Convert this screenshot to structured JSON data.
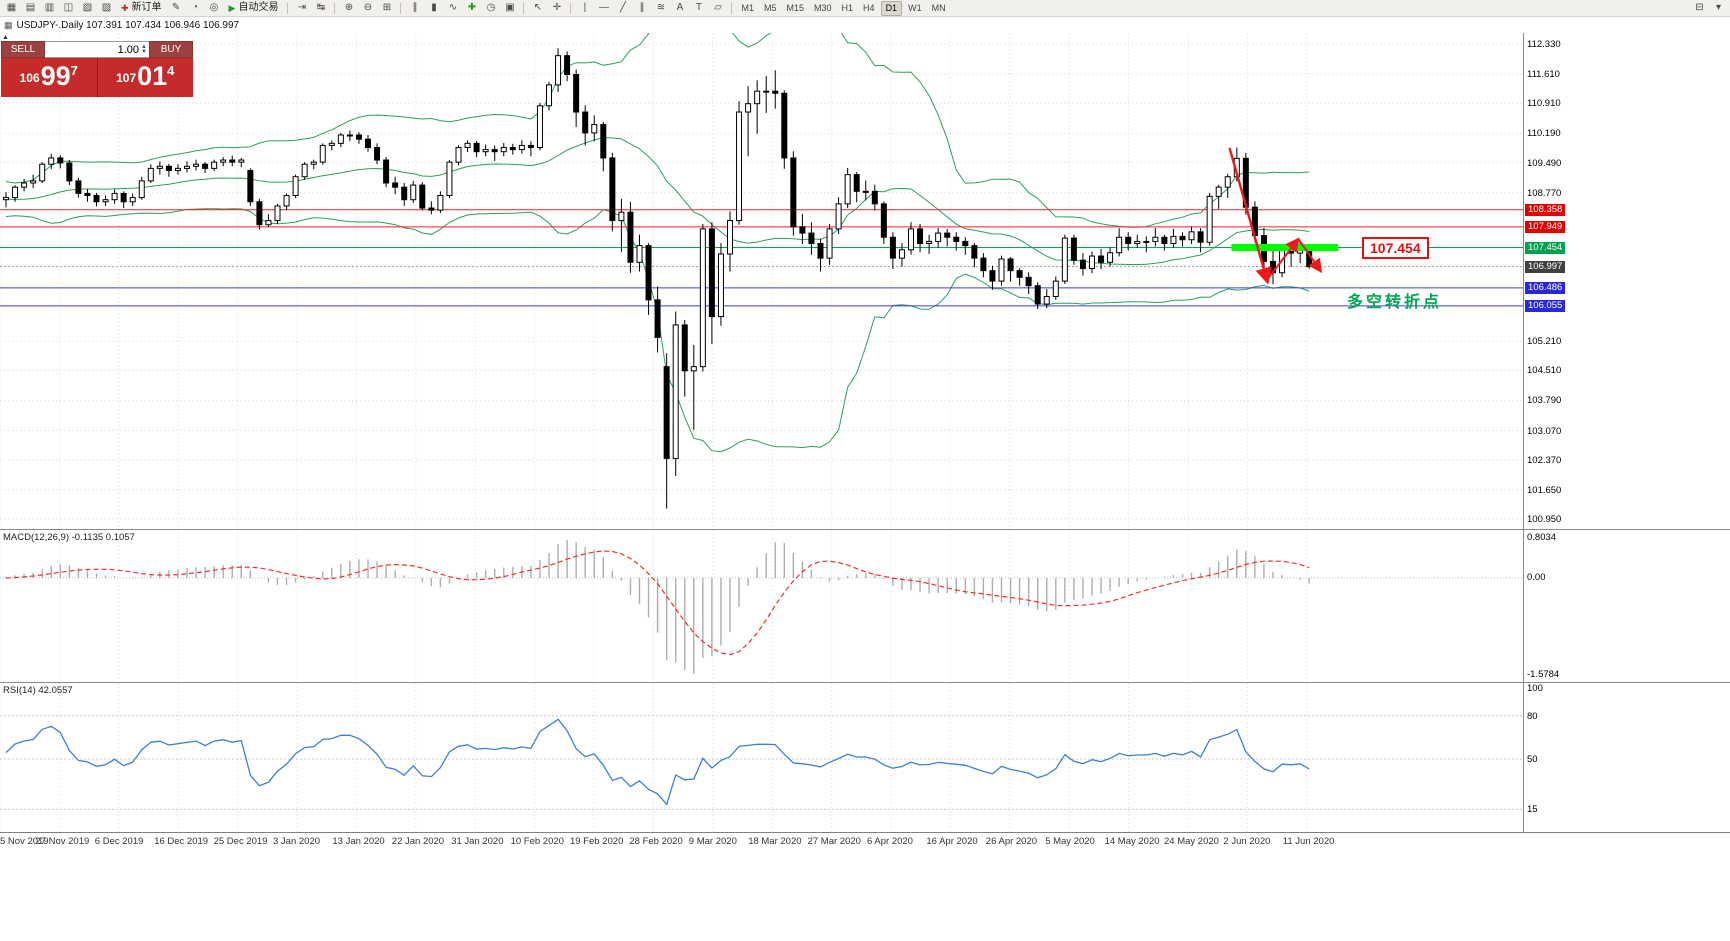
{
  "colors": {
    "grid": "#dcdcdc",
    "candle_up": "#ffffff",
    "candle_down": "#000000",
    "candle_outline": "#000000",
    "bands": "#2e9e5b",
    "hline_red": "#f02020",
    "hline_green": "#00a84f",
    "hline_blue": "#3c3ce8",
    "bid_line": "#9a9a9a",
    "support_bar": "#00ff00",
    "annotation_red": "#f01818",
    "macd_bar": "#adadad",
    "macd_signal": "#f03030",
    "rsi_line": "#3e7fd0",
    "tag_red": "#e00000",
    "tag_green": "#00a050",
    "tag_blue": "#2828d8",
    "tag_bid": "#404040"
  },
  "toolbar": {
    "items": [
      {
        "t": "icon",
        "n": "new-chart-icon",
        "g": "▦"
      },
      {
        "t": "icon",
        "n": "chart-profiles-icon",
        "g": "▤"
      },
      {
        "t": "icon",
        "n": "market-watch-icon",
        "g": "▥"
      },
      {
        "t": "icon",
        "n": "data-window-icon",
        "g": "◫"
      },
      {
        "t": "icon",
        "n": "navigator-icon",
        "g": "▧"
      },
      {
        "t": "icon",
        "n": "terminal-icon",
        "g": "▨"
      },
      {
        "t": "btn",
        "n": "new-order-button",
        "g": "✚",
        "label": "新订单"
      },
      {
        "t": "icon",
        "n": "mql-editor-icon",
        "g": "✎"
      },
      {
        "t": "icon",
        "n": "history-center-icon",
        "g": "◔"
      },
      {
        "t": "icon",
        "n": "strategy-tester-icon",
        "g": "◎"
      },
      {
        "t": "btn",
        "n": "auto-trading-button",
        "g": "▶",
        "label": "自动交易",
        "accent": "#1e9e1e"
      },
      {
        "t": "sep"
      },
      {
        "t": "icon",
        "n": "chart-shift-icon",
        "g": "⇥"
      },
      {
        "t": "icon",
        "n": "auto-scroll-icon",
        "g": "↹"
      },
      {
        "t": "sep"
      },
      {
        "t": "icon",
        "n": "zoom-in-icon",
        "g": "⊕"
      },
      {
        "t": "icon",
        "n": "zoom-out-icon",
        "g": "⊖"
      },
      {
        "t": "icon",
        "n": "tile-windows-icon",
        "g": "⊞"
      },
      {
        "t": "sep"
      },
      {
        "t": "icon",
        "n": "bar-chart-icon",
        "g": "∥"
      },
      {
        "t": "icon",
        "n": "candlestick-chart-icon",
        "g": "▮"
      },
      {
        "t": "icon",
        "n": "line-chart-icon",
        "g": "∿"
      },
      {
        "t": "icon",
        "n": "indicators-icon",
        "g": "✚",
        "accent": "#1e9e1e"
      },
      {
        "t": "icon",
        "n": "periods-icon",
        "g": "◷"
      },
      {
        "t": "icon",
        "n": "templates-icon",
        "g": "▣"
      },
      {
        "t": "sep"
      },
      {
        "t": "icon",
        "n": "cursor-icon",
        "g": "↖"
      },
      {
        "t": "icon",
        "n": "crosshair-icon",
        "g": "✛"
      },
      {
        "t": "sep"
      },
      {
        "t": "icon",
        "n": "vertical-line-icon",
        "g": "|"
      },
      {
        "t": "icon",
        "n": "horizontal-line-icon",
        "g": "―"
      },
      {
        "t": "icon",
        "n": "trendline-icon",
        "g": "╱"
      },
      {
        "t": "icon",
        "n": "channel-icon",
        "g": "∥"
      },
      {
        "t": "icon",
        "n": "fibonacci-icon",
        "g": "≋"
      },
      {
        "t": "icon",
        "n": "text-label-icon",
        "g": "A"
      },
      {
        "t": "icon",
        "n": "arrows-tool-icon",
        "g": "T"
      },
      {
        "t": "icon",
        "n": "shapes-icon",
        "g": "▱"
      },
      {
        "t": "sep"
      },
      {
        "t": "tf"
      },
      {
        "t": "spacer"
      },
      {
        "t": "icon",
        "n": "dock-windows-icon",
        "g": "⊟"
      },
      {
        "t": "icon",
        "n": "toolbar-more-icon",
        "g": "▾"
      }
    ],
    "timeframes": [
      "M1",
      "M5",
      "M15",
      "M30",
      "H1",
      "H4",
      "D1",
      "W1",
      "MN"
    ],
    "active_timeframe": "D1"
  },
  "symbol_info": {
    "icon": "▦",
    "text": "USDJPY-.Daily 107.391 107.434 106.946 106.997"
  },
  "one_click": {
    "collapse_glyph": "▲",
    "sell_label": "SELL",
    "buy_label": "BUY",
    "lot_size": "1.00",
    "lot_up_glyph": "▲",
    "lot_down_glyph": "▼",
    "sell_price_small": "106",
    "sell_price_big": "99",
    "sell_price_sup": "7",
    "buy_price_small": "107",
    "buy_price_big": "01",
    "buy_price_sup": "4"
  },
  "chart_data": {
    "type": "candlestick",
    "title": "USDJPY-.Daily",
    "open_high_low_close_current_bar": [
      107.391,
      107.434,
      106.946,
      106.997
    ],
    "ylim": [
      100.95,
      112.33
    ],
    "y_ticks": [
      112.33,
      111.61,
      110.91,
      110.19,
      109.49,
      108.77,
      105.21,
      104.51,
      103.79,
      103.07,
      102.37,
      101.65,
      100.95
    ],
    "tag_ticks": [
      {
        "value": 108.358,
        "color_key": "tag_red"
      },
      {
        "value": 107.949,
        "color_key": "tag_red"
      },
      {
        "value": 107.454,
        "color_key": "tag_green"
      },
      {
        "value": 106.997,
        "color_key": "tag_bid"
      },
      {
        "value": 106.486,
        "color_key": "tag_blue"
      },
      {
        "value": 106.055,
        "color_key": "tag_blue"
      }
    ],
    "hlines": [
      {
        "price": 108.358,
        "color_key": "hline_red"
      },
      {
        "price": 107.949,
        "color_key": "hline_red"
      },
      {
        "price": 107.454,
        "color_key": "hline_green"
      },
      {
        "price": 106.486,
        "color_key": "hline_blue"
      },
      {
        "price": 106.055,
        "color_key": "hline_blue"
      }
    ],
    "bid": 106.997,
    "indicators": {
      "bollinger": {
        "period": 20,
        "deviation": 2
      },
      "macd": {
        "fast": 12,
        "slow": 26,
        "signal": 9
      }
    },
    "x_labels": [
      "5 Nov 2019",
      "27 Nov 2019",
      "6 Dec 2019",
      "16 Dec 2019",
      "25 Dec 2019",
      "3 Jan 2020",
      "13 Jan 2020",
      "22 Jan 2020",
      "31 Jan 2020",
      "10 Feb 2020",
      "19 Feb 2020",
      "28 Feb 2020",
      "9 Mar 2020",
      "18 Mar 2020",
      "27 Mar 2020",
      "6 Apr 2020",
      "16 Apr 2020",
      "26 Apr 2020",
      "5 May 2020",
      "14 May 2020",
      "24 May 2020",
      "2 Jun 2020",
      "11 Jun 2020"
    ],
    "pre_close": [
      107.9,
      108.05,
      108.2,
      108.35,
      108.45,
      108.3,
      108.5,
      108.65,
      108.6,
      108.75,
      108.9,
      109.0,
      108.85,
      108.95,
      109.1,
      109.2,
      109.05,
      108.9,
      108.75,
      108.6,
      108.45,
      108.3,
      108.2,
      108.35,
      108.5,
      108.6,
      108.7,
      108.55,
      108.4,
      108.55,
      108.7,
      108.8,
      108.9,
      108.75,
      108.6
    ],
    "ohlc": [
      [
        108.6,
        108.78,
        108.42,
        108.65
      ],
      [
        108.65,
        108.95,
        108.55,
        108.9
      ],
      [
        108.9,
        109.1,
        108.8,
        109.0
      ],
      [
        109.0,
        109.2,
        108.88,
        109.05
      ],
      [
        109.05,
        109.5,
        109.0,
        109.45
      ],
      [
        109.45,
        109.7,
        109.33,
        109.6
      ],
      [
        109.6,
        109.67,
        109.35,
        109.48
      ],
      [
        109.48,
        109.55,
        108.95,
        109.05
      ],
      [
        109.05,
        109.12,
        108.65,
        108.75
      ],
      [
        108.75,
        108.85,
        108.55,
        108.7
      ],
      [
        108.7,
        108.76,
        108.44,
        108.55
      ],
      [
        108.55,
        108.7,
        108.45,
        108.6
      ],
      [
        108.6,
        108.85,
        108.5,
        108.75
      ],
      [
        108.75,
        108.8,
        108.4,
        108.55
      ],
      [
        108.55,
        108.75,
        108.45,
        108.65
      ],
      [
        108.65,
        109.15,
        108.6,
        109.05
      ],
      [
        109.05,
        109.45,
        109.0,
        109.35
      ],
      [
        109.35,
        109.52,
        109.2,
        109.4
      ],
      [
        109.4,
        109.46,
        109.15,
        109.3
      ],
      [
        109.3,
        109.45,
        109.2,
        109.35
      ],
      [
        109.35,
        109.52,
        109.25,
        109.4
      ],
      [
        109.4,
        109.56,
        109.3,
        109.45
      ],
      [
        109.45,
        109.5,
        109.24,
        109.35
      ],
      [
        109.35,
        109.56,
        109.28,
        109.5
      ],
      [
        109.5,
        109.62,
        109.4,
        109.55
      ],
      [
        109.55,
        109.66,
        109.4,
        109.5
      ],
      [
        109.5,
        109.6,
        109.38,
        109.55
      ],
      [
        109.3,
        109.35,
        108.45,
        108.55
      ],
      [
        108.55,
        108.62,
        107.88,
        108.0
      ],
      [
        108.0,
        108.25,
        107.94,
        108.1
      ],
      [
        108.1,
        108.5,
        108.02,
        108.45
      ],
      [
        108.45,
        108.75,
        108.35,
        108.7
      ],
      [
        108.7,
        109.2,
        108.64,
        109.15
      ],
      [
        109.15,
        109.5,
        109.08,
        109.45
      ],
      [
        109.45,
        109.56,
        109.33,
        109.5
      ],
      [
        109.5,
        109.95,
        109.44,
        109.9
      ],
      [
        109.9,
        110.02,
        109.78,
        109.95
      ],
      [
        109.95,
        110.2,
        109.86,
        110.15
      ],
      [
        110.15,
        110.26,
        110.0,
        110.15
      ],
      [
        110.15,
        110.22,
        109.94,
        110.05
      ],
      [
        110.05,
        110.15,
        109.75,
        109.85
      ],
      [
        109.85,
        109.95,
        109.45,
        109.55
      ],
      [
        109.55,
        109.62,
        108.9,
        109.0
      ],
      [
        109.0,
        109.15,
        108.73,
        108.9
      ],
      [
        108.9,
        109.0,
        108.45,
        108.6
      ],
      [
        108.6,
        109.05,
        108.52,
        108.95
      ],
      [
        108.95,
        109.02,
        108.35,
        108.4
      ],
      [
        108.4,
        108.56,
        108.25,
        108.35
      ],
      [
        108.35,
        108.8,
        108.28,
        108.7
      ],
      [
        108.7,
        109.55,
        108.64,
        109.5
      ],
      [
        109.5,
        109.9,
        109.42,
        109.85
      ],
      [
        109.85,
        110.02,
        109.74,
        109.95
      ],
      [
        109.95,
        110.0,
        109.62,
        109.75
      ],
      [
        109.75,
        109.92,
        109.64,
        109.8
      ],
      [
        109.8,
        109.9,
        109.53,
        109.75
      ],
      [
        109.75,
        109.96,
        109.64,
        109.85
      ],
      [
        109.85,
        109.94,
        109.68,
        109.8
      ],
      [
        109.8,
        110.02,
        109.7,
        109.9
      ],
      [
        109.9,
        110.0,
        109.64,
        109.85
      ],
      [
        109.85,
        110.92,
        109.78,
        110.85
      ],
      [
        110.85,
        111.42,
        110.74,
        111.35
      ],
      [
        111.35,
        112.23,
        111.18,
        112.05
      ],
      [
        112.05,
        112.15,
        111.44,
        111.6
      ],
      [
        111.6,
        111.72,
        110.34,
        110.7
      ],
      [
        110.7,
        110.86,
        109.9,
        110.2
      ],
      [
        110.2,
        110.62,
        110.0,
        110.4
      ],
      [
        110.4,
        110.46,
        109.28,
        109.6
      ],
      [
        109.6,
        109.72,
        107.84,
        108.1
      ],
      [
        108.1,
        108.62,
        107.35,
        108.3
      ],
      [
        108.3,
        108.55,
        106.85,
        107.1
      ],
      [
        107.1,
        107.76,
        106.88,
        107.5
      ],
      [
        107.5,
        107.56,
        105.84,
        106.2
      ],
      [
        106.2,
        106.52,
        104.94,
        105.3
      ],
      [
        104.6,
        104.92,
        101.2,
        102.4
      ],
      [
        102.4,
        105.92,
        101.98,
        105.6
      ],
      [
        105.6,
        105.72,
        103.88,
        104.5
      ],
      [
        104.5,
        105.12,
        103.08,
        104.6
      ],
      [
        104.6,
        108.02,
        104.48,
        107.9
      ],
      [
        107.9,
        108.06,
        105.14,
        105.8
      ],
      [
        105.8,
        107.56,
        105.58,
        107.3
      ],
      [
        107.3,
        108.32,
        106.88,
        108.1
      ],
      [
        108.1,
        110.96,
        108.0,
        110.7
      ],
      [
        110.7,
        111.32,
        109.64,
        110.9
      ],
      [
        110.9,
        111.46,
        110.18,
        111.2
      ],
      [
        111.2,
        111.56,
        110.68,
        111.2
      ],
      [
        111.2,
        111.7,
        110.78,
        111.15
      ],
      [
        111.15,
        111.22,
        109.34,
        109.6
      ],
      [
        109.6,
        109.76,
        107.74,
        107.95
      ],
      [
        107.95,
        108.26,
        107.54,
        107.8
      ],
      [
        107.8,
        108.06,
        107.28,
        107.55
      ],
      [
        107.55,
        107.66,
        106.88,
        107.2
      ],
      [
        107.2,
        108.02,
        107.04,
        107.9
      ],
      [
        107.9,
        108.66,
        107.78,
        108.5
      ],
      [
        108.5,
        109.36,
        108.4,
        109.2
      ],
      [
        109.2,
        109.26,
        108.54,
        108.8
      ],
      [
        108.8,
        109.06,
        108.58,
        108.8
      ],
      [
        108.8,
        108.96,
        108.34,
        108.5
      ],
      [
        108.5,
        108.56,
        107.54,
        107.7
      ],
      [
        107.7,
        107.82,
        106.94,
        107.2
      ],
      [
        107.2,
        107.56,
        107.0,
        107.4
      ],
      [
        107.4,
        108.06,
        107.28,
        107.9
      ],
      [
        107.9,
        108.02,
        107.34,
        107.55
      ],
      [
        107.55,
        107.76,
        107.3,
        107.6
      ],
      [
        107.6,
        107.92,
        107.44,
        107.8
      ],
      [
        107.8,
        107.9,
        107.48,
        107.7
      ],
      [
        107.7,
        107.82,
        107.38,
        107.6
      ],
      [
        107.6,
        107.7,
        107.28,
        107.5
      ],
      [
        107.5,
        107.56,
        106.98,
        107.2
      ],
      [
        107.2,
        107.32,
        106.74,
        106.9
      ],
      [
        106.9,
        107.02,
        106.44,
        106.65
      ],
      [
        106.65,
        107.26,
        106.54,
        107.18
      ],
      [
        107.18,
        107.22,
        106.64,
        106.9
      ],
      [
        106.9,
        106.96,
        106.54,
        106.74
      ],
      [
        106.74,
        106.86,
        106.34,
        106.54
      ],
      [
        106.54,
        106.62,
        105.98,
        106.1
      ],
      [
        106.1,
        106.46,
        106.0,
        106.28
      ],
      [
        106.28,
        106.76,
        106.2,
        106.65
      ],
      [
        106.65,
        107.76,
        106.58,
        107.68
      ],
      [
        107.68,
        107.76,
        107.04,
        107.15
      ],
      [
        107.15,
        107.32,
        106.78,
        106.95
      ],
      [
        106.95,
        107.36,
        106.84,
        107.25
      ],
      [
        107.25,
        107.42,
        106.94,
        107.1
      ],
      [
        107.1,
        107.46,
        107.0,
        107.33
      ],
      [
        107.33,
        107.92,
        107.24,
        107.7
      ],
      [
        107.7,
        107.82,
        107.38,
        107.55
      ],
      [
        107.55,
        107.76,
        107.44,
        107.6
      ],
      [
        107.6,
        107.72,
        107.34,
        107.6
      ],
      [
        107.6,
        107.92,
        107.48,
        107.7
      ],
      [
        107.7,
        107.76,
        107.38,
        107.55
      ],
      [
        107.55,
        107.9,
        107.44,
        107.72
      ],
      [
        107.72,
        107.82,
        107.48,
        107.64
      ],
      [
        107.64,
        107.96,
        107.54,
        107.83
      ],
      [
        107.83,
        107.92,
        107.34,
        107.58
      ],
      [
        107.58,
        108.76,
        107.5,
        108.68
      ],
      [
        108.68,
        108.96,
        108.38,
        108.9
      ],
      [
        108.9,
        109.22,
        108.64,
        109.15
      ],
      [
        109.15,
        109.85,
        109.04,
        109.59
      ],
      [
        109.59,
        109.72,
        108.24,
        108.42
      ],
      [
        108.42,
        108.56,
        107.58,
        107.74
      ],
      [
        107.74,
        107.92,
        106.94,
        107.12
      ],
      [
        107.12,
        107.42,
        106.57,
        106.85
      ],
      [
        106.85,
        107.46,
        106.74,
        107.38
      ],
      [
        107.38,
        107.46,
        106.99,
        107.32
      ],
      [
        107.32,
        107.62,
        107.08,
        107.39
      ],
      [
        107.391,
        107.434,
        106.946,
        106.997
      ]
    ]
  },
  "annotations": {
    "trend_arrow": {
      "from_index": 135.2,
      "from_price": 109.84,
      "to_index": 139.4,
      "to_price": 106.62
    },
    "zigzag": [
      {
        "from_index": 139.4,
        "from_price": 106.7,
        "to_index": 142.8,
        "to_price": 107.66
      },
      {
        "from_index": 142.8,
        "from_price": 107.66,
        "to_index": 145.3,
        "to_price": 106.88
      }
    ],
    "support_bar": {
      "price": 107.454,
      "from_index": 135.4,
      "to_index": 147.2
    },
    "price_label": {
      "text": "107.454"
    },
    "note": {
      "text": "多空转折点"
    }
  },
  "macd": {
    "label": "MACD(12,26,9) -0.1135 0.1057",
    "scale_labels": [
      "0.8034",
      "0.00",
      "-1.5784"
    ]
  },
  "rsi": {
    "label": "RSI(14) 42.0557",
    "period": 14,
    "levels": [
      80,
      50,
      15
    ],
    "scale_labels": [
      "100",
      "80",
      "50",
      "15"
    ]
  }
}
